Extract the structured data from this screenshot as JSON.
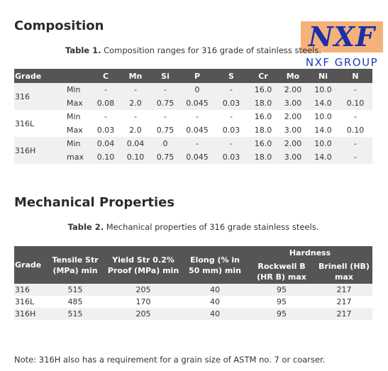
{
  "composition": {
    "heading": "Composition",
    "caption_label": "Table 1.",
    "caption_text": " Composition ranges for 316 grade of stainless steels.",
    "headers": [
      "Grade",
      "",
      "C",
      "Mn",
      "Si",
      "P",
      "S",
      "Cr",
      "Mo",
      "Ni",
      "N"
    ],
    "rows": [
      {
        "grade": "316",
        "limit": "Min",
        "values": [
          "-",
          "-",
          "-",
          "0",
          "-",
          "16.0",
          "2.00",
          "10.0",
          "-"
        ]
      },
      {
        "grade": "",
        "limit": "Max",
        "values": [
          "0.08",
          "2.0",
          "0.75",
          "0.045",
          "0.03",
          "18.0",
          "3.00",
          "14.0",
          "0.10"
        ]
      },
      {
        "grade": "316L",
        "limit": "Min",
        "values": [
          "-",
          "-",
          "-",
          "-",
          "-",
          "16.0",
          "2.00",
          "10.0",
          "-"
        ]
      },
      {
        "grade": "",
        "limit": "Max",
        "values": [
          "0.03",
          "2.0",
          "0.75",
          "0.045",
          "0.03",
          "18.0",
          "3.00",
          "14.0",
          "0.10"
        ]
      },
      {
        "grade": "316H",
        "limit": "Min",
        "values": [
          "0.04",
          "0.04",
          "0",
          "-",
          "-",
          "16.0",
          "2.00",
          "10.0",
          "-"
        ]
      },
      {
        "grade": "",
        "limit": "max",
        "values": [
          "0.10",
          "0.10",
          "0.75",
          "0.045",
          "0.03",
          "18.0",
          "3.00",
          "14.0",
          "-"
        ]
      }
    ]
  },
  "mechanical": {
    "heading": "Mechanical Properties",
    "caption_label": "Table 2.",
    "caption_text": " Mechanical properties of 316 grade stainless steels.",
    "headers": {
      "grade": "Grade",
      "tensile": "Tensile Str (MPa) min",
      "yield": "Yield Str 0.2% Proof (MPa) min",
      "elong": "Elong (% in 50 mm) min",
      "hardness": "Hardness",
      "rockwell": "Rockwell B (HR B) max",
      "brinell": "Brinell (HB) max"
    },
    "rows": [
      {
        "grade": "316",
        "values": [
          "515",
          "205",
          "40",
          "95",
          "217"
        ]
      },
      {
        "grade": "316L",
        "values": [
          "485",
          "170",
          "40",
          "95",
          "217"
        ]
      },
      {
        "grade": "316H",
        "values": [
          "515",
          "205",
          "40",
          "95",
          "217"
        ]
      }
    ]
  },
  "logo": {
    "mark": "NXF",
    "text": "NXF GROUP"
  },
  "note": "Note: 316H also has a requirement for a grain size of ASTM no. 7 or coarser.",
  "colors": {
    "header_bg": "#555555",
    "row_shade": "#f0f0f0",
    "logo_bg": "#f4b27a",
    "logo_blue": "#1c2fa8"
  }
}
